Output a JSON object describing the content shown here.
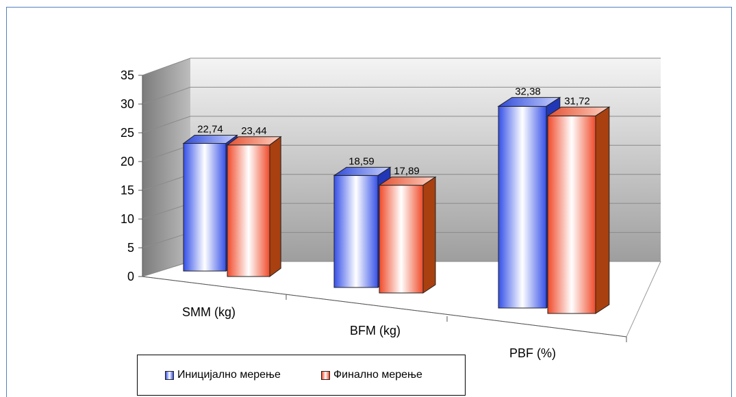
{
  "chart_data": {
    "type": "bar",
    "title": "",
    "xlabel": "",
    "ylabel": "",
    "categories": [
      "SMM (kg)",
      "BFM (kg)",
      "PBF (%)"
    ],
    "series": [
      {
        "name": "Иницијално мерење",
        "values": [
          22.74,
          18.59,
          32.38
        ],
        "value_labels": [
          "22,74",
          "18,59",
          "32,38"
        ],
        "color": "#4a6fe3"
      },
      {
        "name": "Финално мерење",
        "values": [
          23.44,
          17.89,
          31.72
        ],
        "value_labels": [
          "23,44",
          "17,89",
          "31,72"
        ],
        "color": "#f0553a"
      }
    ],
    "ylim": [
      0,
      35
    ],
    "yticks": [
      "0",
      "5",
      "10",
      "15",
      "20",
      "25",
      "30",
      "35"
    ],
    "grid": true,
    "three_d": true,
    "legend_position": "bottom"
  }
}
